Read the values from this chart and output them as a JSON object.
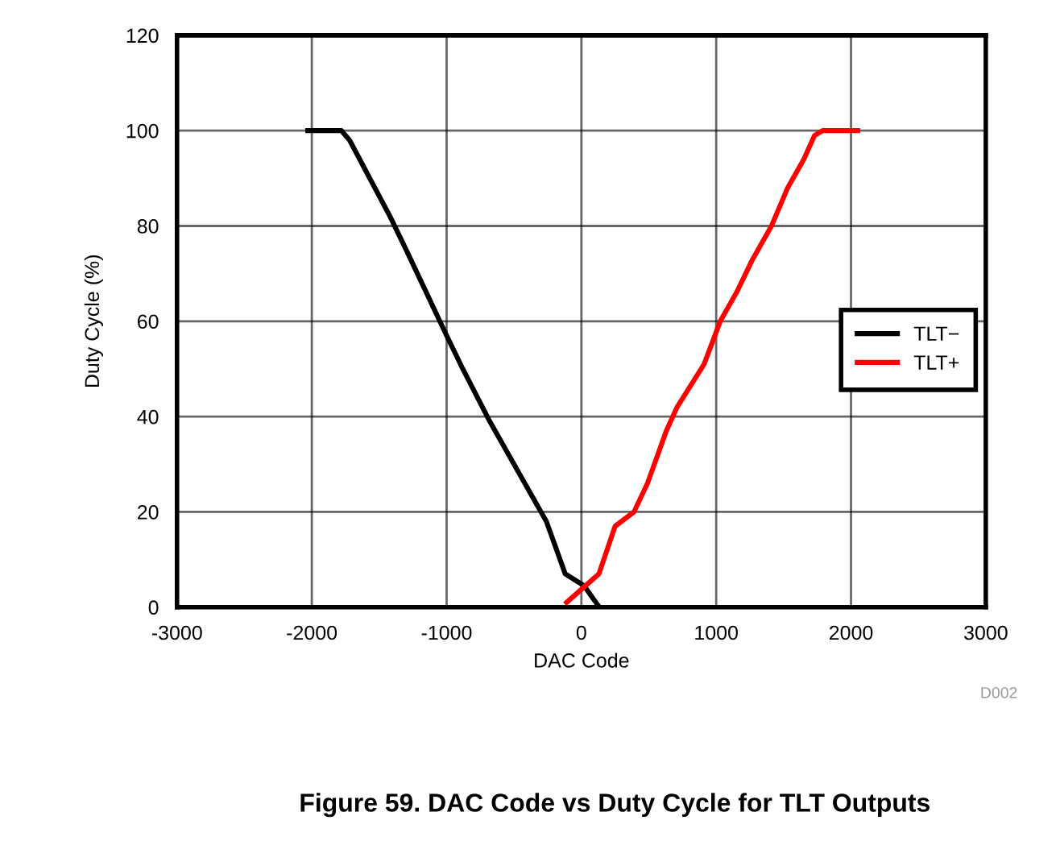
{
  "chart_data": {
    "type": "line",
    "title": "Figure 59. DAC Code vs Duty Cycle for TLT Outputs",
    "xlabel": "DAC Code",
    "ylabel": "Duty Cycle (%)",
    "annotations": [
      "D002"
    ],
    "xlim": [
      -3000,
      3000
    ],
    "xticks": [
      -3000,
      -2000,
      -1000,
      0,
      1000,
      2000,
      3000
    ],
    "ylim": [
      0,
      120
    ],
    "yticks": [
      0,
      20,
      40,
      60,
      80,
      100,
      120
    ],
    "grid": true,
    "legend": "right",
    "marker": "none",
    "line_style": "solid",
    "series": [
      {
        "name": "TLT−",
        "color": "#000000",
        "x": [
          -2030,
          -1780,
          -1720,
          -1420,
          -1300,
          -1000,
          -880,
          -680,
          -480,
          -260,
          -120,
          20,
          120
        ],
        "values": [
          100,
          100,
          98,
          82,
          75,
          57,
          50,
          39,
          29,
          18,
          7,
          4.5,
          0.5
        ]
      },
      {
        "name": "TLT+",
        "color": "#ff0000",
        "x": [
          -110,
          130,
          250,
          390,
          490,
          630,
          710,
          910,
          1030,
          1150,
          1270,
          1410,
          1530,
          1650,
          1730,
          1790,
          2050
        ],
        "values": [
          1,
          7,
          17,
          20,
          26,
          37,
          42,
          51,
          60,
          66,
          73,
          80,
          88,
          94,
          99,
          100,
          100
        ]
      }
    ]
  }
}
